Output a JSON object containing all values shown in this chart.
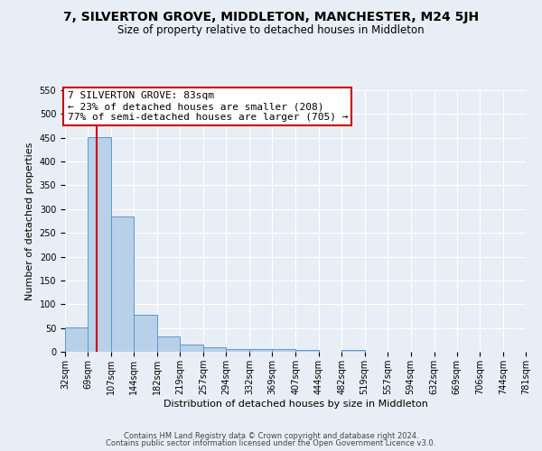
{
  "title": "7, SILVERTON GROVE, MIDDLETON, MANCHESTER, M24 5JH",
  "subtitle": "Size of property relative to detached houses in Middleton",
  "xlabel": "Distribution of detached houses by size in Middleton",
  "ylabel": "Number of detached properties",
  "bin_edges": [
    32,
    69,
    107,
    144,
    182,
    219,
    257,
    294,
    332,
    369,
    407,
    444,
    482,
    519,
    557,
    594,
    632,
    669,
    706,
    744,
    781
  ],
  "bin_labels": [
    "32sqm",
    "69sqm",
    "107sqm",
    "144sqm",
    "182sqm",
    "219sqm",
    "257sqm",
    "294sqm",
    "332sqm",
    "369sqm",
    "407sqm",
    "444sqm",
    "482sqm",
    "519sqm",
    "557sqm",
    "594sqm",
    "632sqm",
    "669sqm",
    "706sqm",
    "744sqm",
    "781sqm"
  ],
  "bar_heights": [
    52,
    452,
    285,
    78,
    32,
    15,
    10,
    6,
    5,
    5,
    4,
    0,
    4,
    0,
    0,
    0,
    0,
    0,
    0,
    0
  ],
  "bar_color": "#b8d0e8",
  "bar_edge_color": "#5a9ac8",
  "vline_x": 83,
  "vline_color": "#cc0000",
  "ylim": [
    0,
    550
  ],
  "yticks": [
    0,
    50,
    100,
    150,
    200,
    250,
    300,
    350,
    400,
    450,
    500,
    550
  ],
  "annotation_text": "7 SILVERTON GROVE: 83sqm\n← 23% of detached houses are smaller (208)\n77% of semi-detached houses are larger (705) →",
  "annotation_box_color": "#ffffff",
  "annotation_box_edgecolor": "#cc0000",
  "footer_line1": "Contains HM Land Registry data © Crown copyright and database right 2024.",
  "footer_line2": "Contains public sector information licensed under the Open Government Licence v3.0.",
  "background_color": "#e8eef5",
  "grid_color": "#ffffff",
  "title_fontsize": 10,
  "subtitle_fontsize": 8.5,
  "axis_label_fontsize": 8,
  "tick_fontsize": 7,
  "annotation_fontsize": 8,
  "footer_fontsize": 6
}
